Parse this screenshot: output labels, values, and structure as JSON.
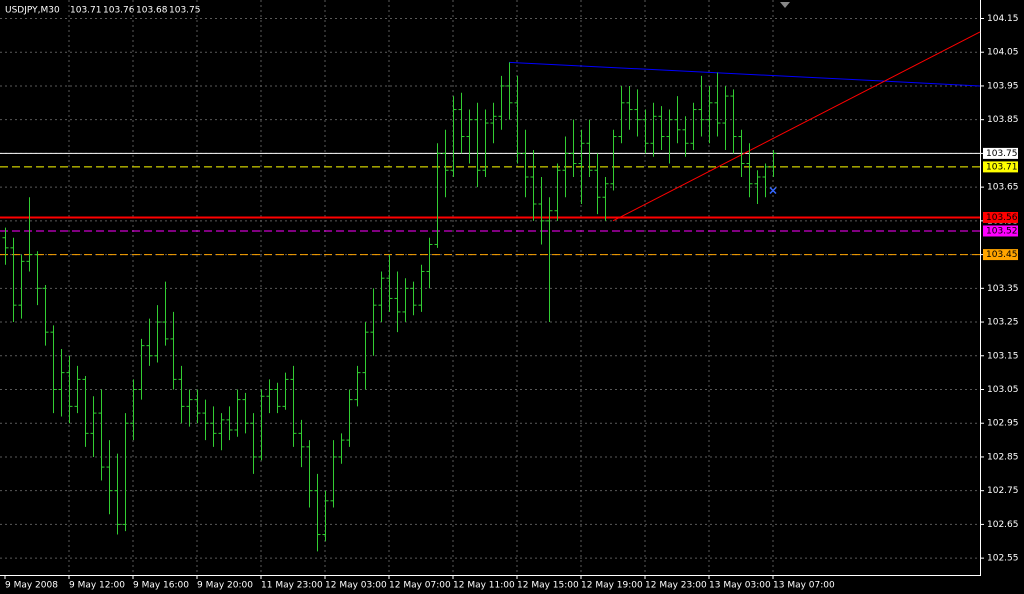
{
  "chart_data": {
    "type": "ohlc",
    "title": "USDJPY,M30",
    "color": "#32cd32",
    "grid": true,
    "categories": [
      "9 May 2008",
      null,
      null,
      null,
      null,
      null,
      null,
      null,
      "9 May 12:00",
      null,
      null,
      null,
      null,
      null,
      null,
      null,
      "9 May 16:00",
      null,
      null,
      null,
      null,
      null,
      null,
      null,
      "9 May 20:00",
      null,
      null,
      null,
      null,
      null,
      null,
      null,
      "11 May 23:00",
      null,
      null,
      null,
      null,
      null,
      null,
      null,
      "12 May 03:00",
      null,
      null,
      null,
      null,
      null,
      null,
      null,
      "12 May 07:00",
      null,
      null,
      null,
      null,
      null,
      null,
      null,
      "12 May 11:00",
      null,
      null,
      null,
      null,
      null,
      null,
      null,
      "12 May 15:00",
      null,
      null,
      null,
      null,
      null,
      null,
      null,
      "12 May 19:00",
      null,
      null,
      null,
      null,
      null,
      null,
      null,
      "12 May 23:00",
      null,
      null,
      null,
      null,
      null,
      null,
      null,
      "13 May 03:00",
      null,
      null,
      null,
      null,
      null,
      null,
      null,
      "13 May 07:00"
    ],
    "open": [
      103.5,
      103.47,
      103.3,
      103.43,
      103.45,
      103.35,
      103.22,
      103.05,
      103.1,
      103.0,
      103.08,
      102.92,
      102.98,
      102.82,
      102.75,
      102.65,
      102.95,
      103.05,
      103.18,
      103.15,
      103.25,
      103.2,
      103.08,
      103.0,
      103.02,
      102.98,
      102.95,
      102.92,
      102.96,
      102.93,
      103.02,
      102.95,
      102.85,
      103.03,
      103.05,
      103.0,
      103.08,
      102.92,
      102.88,
      102.75,
      102.62,
      102.72,
      102.85,
      102.9,
      103.02,
      103.1,
      103.22,
      103.3,
      103.38,
      103.32,
      103.28,
      103.35,
      103.3,
      103.4,
      103.48,
      103.75,
      103.7,
      103.88,
      103.8,
      103.85,
      103.7,
      103.84,
      103.86,
      103.95,
      103.9,
      103.75,
      103.68,
      103.6,
      103.55,
      103.58,
      103.7,
      103.75,
      103.72,
      103.78,
      103.7,
      103.62,
      103.66,
      103.8,
      103.9,
      103.88,
      103.85,
      103.78,
      103.86,
      103.8,
      103.85,
      103.82,
      103.78,
      103.88,
      103.85,
      103.9,
      103.84,
      103.92,
      103.8,
      103.72,
      103.66,
      103.68,
      103.71
    ],
    "high": [
      103.53,
      103.5,
      103.45,
      103.62,
      103.46,
      103.36,
      103.24,
      103.17,
      103.15,
      103.12,
      103.09,
      103.03,
      103.05,
      102.9,
      102.86,
      102.98,
      103.08,
      103.2,
      103.26,
      103.3,
      103.37,
      103.28,
      103.12,
      103.05,
      103.05,
      103.02,
      103.0,
      102.98,
      103.0,
      103.05,
      103.04,
      102.98,
      103.05,
      103.08,
      103.07,
      103.1,
      103.12,
      102.96,
      102.9,
      102.8,
      102.75,
      102.9,
      102.92,
      103.05,
      103.12,
      103.25,
      103.35,
      103.4,
      103.45,
      103.4,
      103.38,
      103.37,
      103.42,
      103.5,
      103.78,
      103.82,
      103.92,
      103.93,
      103.88,
      103.9,
      103.88,
      103.9,
      103.98,
      104.02,
      103.98,
      103.82,
      103.76,
      103.68,
      103.62,
      103.72,
      103.8,
      103.85,
      103.82,
      103.85,
      103.75,
      103.68,
      103.82,
      103.95,
      103.95,
      103.94,
      103.88,
      103.9,
      103.89,
      103.88,
      103.92,
      103.86,
      103.9,
      103.98,
      103.95,
      103.99,
      103.95,
      103.94,
      103.82,
      103.78,
      103.7,
      103.72,
      103.76
    ],
    "low": [
      103.42,
      103.25,
      103.26,
      103.4,
      103.3,
      103.18,
      102.98,
      102.97,
      102.95,
      102.98,
      102.88,
      102.85,
      102.78,
      102.68,
      102.62,
      102.63,
      102.9,
      103.02,
      103.12,
      103.13,
      103.18,
      103.05,
      102.95,
      102.94,
      102.95,
      102.9,
      102.88,
      102.87,
      102.9,
      102.91,
      102.92,
      102.8,
      102.84,
      102.98,
      102.98,
      102.99,
      102.88,
      102.82,
      102.7,
      102.57,
      102.6,
      102.7,
      102.83,
      102.88,
      103.0,
      103.05,
      103.15,
      103.25,
      103.28,
      103.22,
      103.25,
      103.27,
      103.28,
      103.35,
      103.47,
      103.62,
      103.68,
      103.75,
      103.72,
      103.65,
      103.68,
      103.78,
      103.82,
      103.85,
      103.72,
      103.62,
      103.55,
      103.48,
      103.25,
      103.55,
      103.62,
      103.68,
      103.6,
      103.68,
      103.57,
      103.55,
      103.64,
      103.78,
      103.82,
      103.8,
      103.75,
      103.74,
      103.76,
      103.72,
      103.78,
      103.74,
      103.76,
      103.8,
      103.78,
      103.8,
      103.76,
      103.75,
      103.68,
      103.62,
      103.6,
      103.62,
      103.68
    ],
    "close": [
      103.47,
      103.3,
      103.43,
      103.45,
      103.35,
      103.22,
      103.05,
      103.1,
      103.0,
      103.08,
      102.92,
      102.98,
      102.82,
      102.75,
      102.65,
      102.95,
      103.05,
      103.18,
      103.15,
      103.25,
      103.2,
      103.08,
      103.0,
      103.02,
      102.98,
      102.95,
      102.92,
      102.96,
      102.93,
      103.02,
      102.95,
      102.85,
      103.03,
      103.05,
      103.0,
      103.08,
      102.92,
      102.88,
      102.75,
      102.62,
      102.72,
      102.85,
      102.9,
      103.02,
      103.1,
      103.22,
      103.3,
      103.38,
      103.32,
      103.28,
      103.35,
      103.3,
      103.4,
      103.48,
      103.75,
      103.7,
      103.88,
      103.8,
      103.85,
      103.7,
      103.84,
      103.86,
      103.95,
      103.9,
      103.75,
      103.68,
      103.6,
      103.55,
      103.58,
      103.7,
      103.75,
      103.72,
      103.78,
      103.7,
      103.62,
      103.66,
      103.8,
      103.9,
      103.88,
      103.85,
      103.78,
      103.86,
      103.8,
      103.85,
      103.82,
      103.78,
      103.88,
      103.85,
      103.9,
      103.84,
      103.92,
      103.8,
      103.72,
      103.66,
      103.68,
      103.71,
      103.75
    ],
    "ylim": [
      102.5,
      104.19
    ],
    "yticks": [
      104.15,
      104.05,
      103.95,
      103.85,
      103.75,
      103.65,
      103.55,
      103.45,
      103.35,
      103.25,
      103.15,
      103.05,
      102.95,
      102.85,
      102.75,
      102.65,
      102.55
    ],
    "hlines": [
      {
        "value": 103.75,
        "color": "#ffffff",
        "style": "solid"
      },
      {
        "value": 103.71,
        "color": "#ffff00",
        "style": "dashed"
      },
      {
        "value": 103.56,
        "color": "#ff0000",
        "style": "solid"
      },
      {
        "value": 103.52,
        "color": "#ff00ff",
        "style": "dashed"
      },
      {
        "value": 103.45,
        "color": "#ffa500",
        "style": "dashed"
      }
    ],
    "trendlines": [
      {
        "color": "#0000ff",
        "x": [
          63,
          122
        ],
        "y": [
          104.02,
          103.95
        ]
      },
      {
        "color": "#ff0000",
        "x": [
          76,
          122
        ],
        "y": [
          103.55,
          104.11
        ]
      }
    ],
    "marker": {
      "color": "#3366ff",
      "x": 96,
      "y": 103.64
    }
  }
}
